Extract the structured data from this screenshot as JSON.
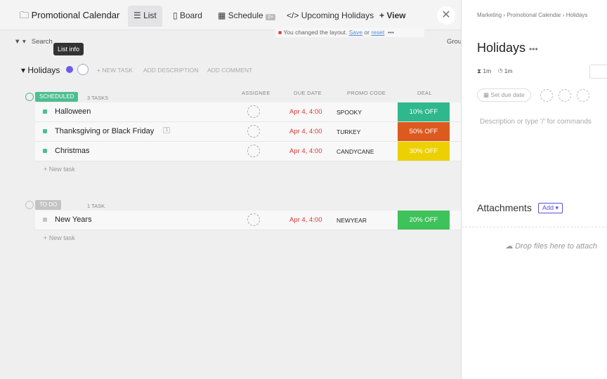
{
  "header": {
    "title": "Promotional Calendar",
    "tabs": [
      "List",
      "Board",
      "Schedule",
      "Upcoming Holidays"
    ],
    "schedule_badge": "2+",
    "view": "View"
  },
  "notice": {
    "text": "You changed the layout.",
    "save": "Save",
    "or": "or",
    "reset": "reset"
  },
  "toolbar": {
    "search": "Search",
    "group": "Grou"
  },
  "tooltip": "List info",
  "list": {
    "title": "Holidays",
    "actions": [
      "+ NEW TASK",
      "ADD DESCRIPTION",
      "ADD COMMENT"
    ]
  },
  "columns": [
    "ASSIGNEE",
    "DUE DATE",
    "PROMO CODE",
    "DEAL"
  ],
  "groups": [
    {
      "status": "SCHEDULED",
      "count": "3 TASKS",
      "color": "#4cbf90",
      "tasks": [
        {
          "name": "Halloween",
          "due": "Apr 4, 4:00",
          "promo": "SPOOKY",
          "deal": "10% OFF",
          "deal_color": "#2fb88b"
        },
        {
          "name": "Thanksgiving or Black Friday",
          "badge": "1",
          "due": "Apr 4, 4:00",
          "promo": "TURKEY",
          "deal": "50% OFF",
          "deal_color": "#dd5a1e"
        },
        {
          "name": "Christmas",
          "due": "Apr 4, 4:00",
          "promo": "CANDYCANE",
          "deal": "30% OFF",
          "deal_color": "#ecd002"
        }
      ],
      "new_task": "+ New task"
    },
    {
      "status": "TO DO",
      "count": "1 TASK",
      "color": "#c4c4c4",
      "tasks": [
        {
          "name": "New Years",
          "due": "Apr 4, 4:00",
          "promo": "NEWYEAR",
          "deal": "20% OFF",
          "deal_color": "#3ec25a"
        }
      ],
      "new_task": "+ New task"
    }
  ],
  "panel": {
    "breadcrumb": [
      "Marketing",
      "Promotional Calendar",
      "Holidays"
    ],
    "title": "Holidays",
    "time_estimate": "1m",
    "time_tracked": "1m",
    "due": "Set due date",
    "description": "Description or type '/' for commands",
    "attachments": "Attachments",
    "add": "Add",
    "drop": "Drop files here to attach"
  }
}
